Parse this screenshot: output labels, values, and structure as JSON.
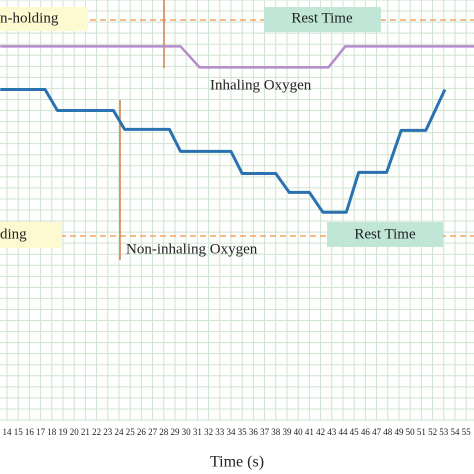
{
  "chart_data": {
    "type": "line",
    "x_label": "Time (s)",
    "xlim": [
      13.375,
      55.7
    ],
    "xticks": [
      14,
      15,
      16,
      17,
      18,
      19,
      20,
      21,
      22,
      23,
      24,
      25,
      26,
      27,
      28,
      29,
      30,
      31,
      32,
      33,
      34,
      35,
      36,
      37,
      38,
      39,
      40,
      41,
      42,
      43,
      44,
      45,
      46,
      47,
      48,
      49,
      50,
      51,
      52,
      53,
      54,
      55
    ],
    "ylim": [
      0,
      38
    ],
    "grid": true,
    "series": [
      {
        "color": "#b48ccc",
        "x": [
          13.4,
          29.5,
          31.2,
          42.7,
          44.2,
          55.7
        ],
        "values": [
          33.8,
          33.8,
          31.9,
          31.9,
          33.8,
          33.8
        ]
      },
      {
        "color": "#2a72b0",
        "x": [
          13.4,
          17.4,
          18.5,
          23.5,
          24.5,
          28.5,
          29.5,
          34,
          35,
          38,
          39.2,
          41,
          42.2,
          44.3,
          45.4,
          47.9,
          49.2,
          51.4,
          53.1
        ],
        "values": [
          29.9,
          29.9,
          28,
          28,
          26.3,
          26.3,
          24.3,
          24.3,
          22.3,
          22.3,
          20.6,
          20.6,
          18.8,
          18.8,
          22.4,
          22.4,
          26.2,
          26.2,
          29.9
        ]
      }
    ],
    "annotations": [
      "n-holding",
      "Rest Time",
      "Inhaling Oxygen",
      "ding",
      "Non-inhaling Oxygen",
      "Rest Time"
    ]
  }
}
